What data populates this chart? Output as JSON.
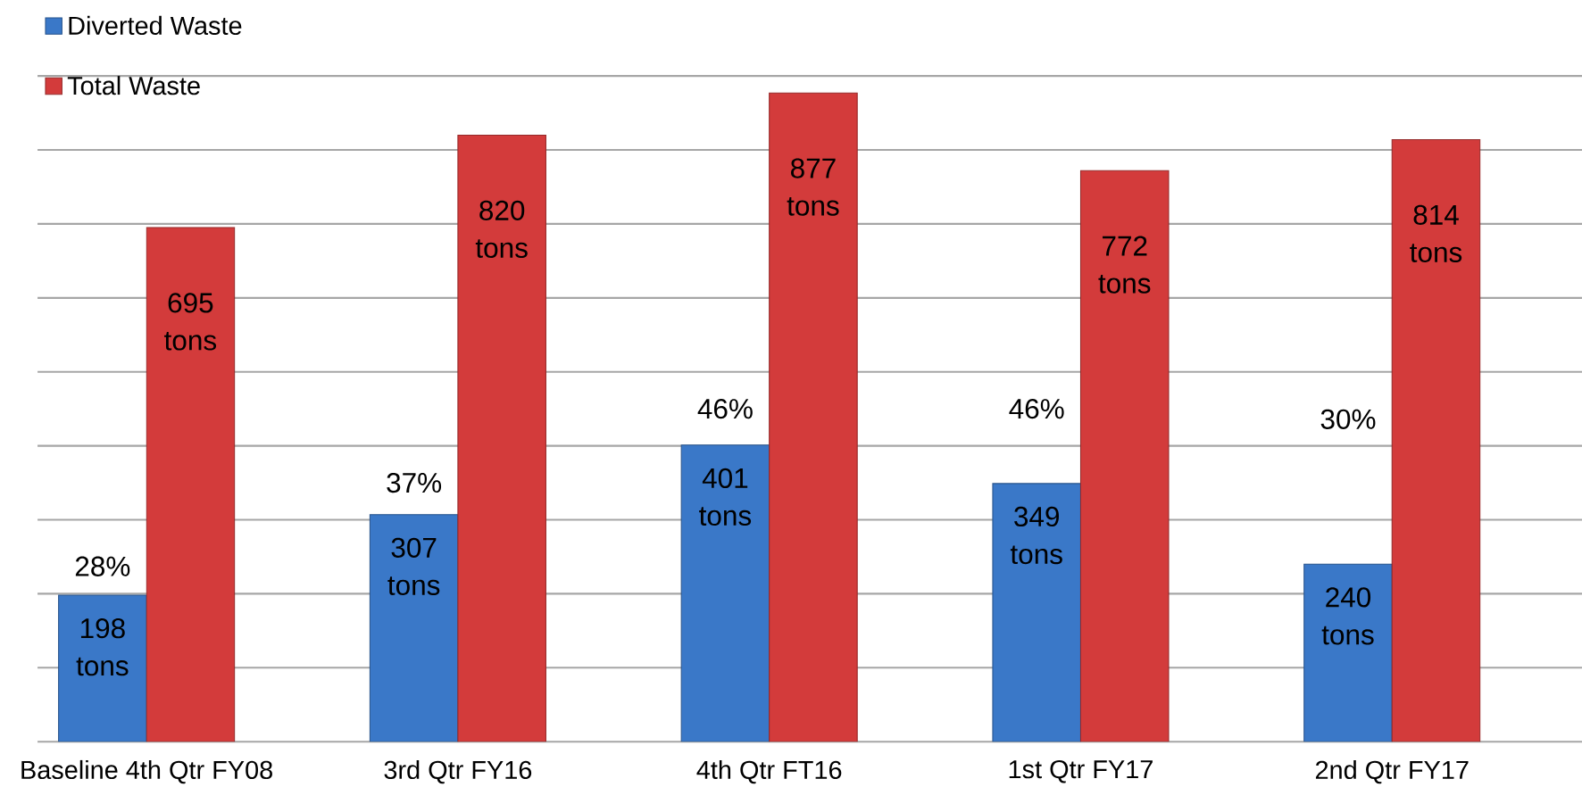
{
  "chart_data": {
    "type": "bar",
    "categories": [
      "Baseline 4th Qtr FY08",
      "3rd Qtr FY16",
      "4th Qtr FT16",
      "1st Qtr FY17",
      "2nd Qtr FY17"
    ],
    "series": [
      {
        "name": "Diverted Waste",
        "color": "#3a78c8",
        "values": [
          198,
          307,
          401,
          349,
          240
        ],
        "value_labels": [
          "198 tons",
          "307 tons",
          "401 tons",
          "349 tons",
          "240 tons"
        ]
      },
      {
        "name": "Total Waste",
        "color": "#d33b3b",
        "values": [
          695,
          820,
          877,
          772,
          814
        ],
        "value_labels": [
          "695 tons",
          "820 tons",
          "877 tons",
          "772 tons",
          "814 tons"
        ]
      }
    ],
    "ylim": [
      0,
      900
    ],
    "yticks": [
      {
        "value": 0,
        "label": null
      },
      {
        "value": 100,
        "label": null
      },
      {
        "value": 200,
        "label": null
      },
      {
        "value": 300,
        "label": null
      },
      {
        "value": 400,
        "label": null
      },
      {
        "value": 500,
        "label": null
      },
      {
        "value": 600,
        "label": null
      },
      {
        "value": 700,
        "label": null
      },
      {
        "value": 800,
        "label": null
      },
      {
        "value": 900,
        "label": null
      }
    ],
    "grid": "y",
    "legend": "top left",
    "tick_labels": "x",
    "annotations": [
      {
        "text": "28%",
        "x": "Baseline 4th Qtr FY08",
        "y": 237
      },
      {
        "text": "37%",
        "x": "3rd Qtr FY16",
        "y": 350
      },
      {
        "text": "46%",
        "x": "4th Qtr FT16",
        "y": 450
      },
      {
        "text": "46%",
        "x": "1st Qtr FY17",
        "y": 450
      },
      {
        "text": "30%",
        "x": "2nd Qtr FY17",
        "y": 436
      }
    ]
  }
}
